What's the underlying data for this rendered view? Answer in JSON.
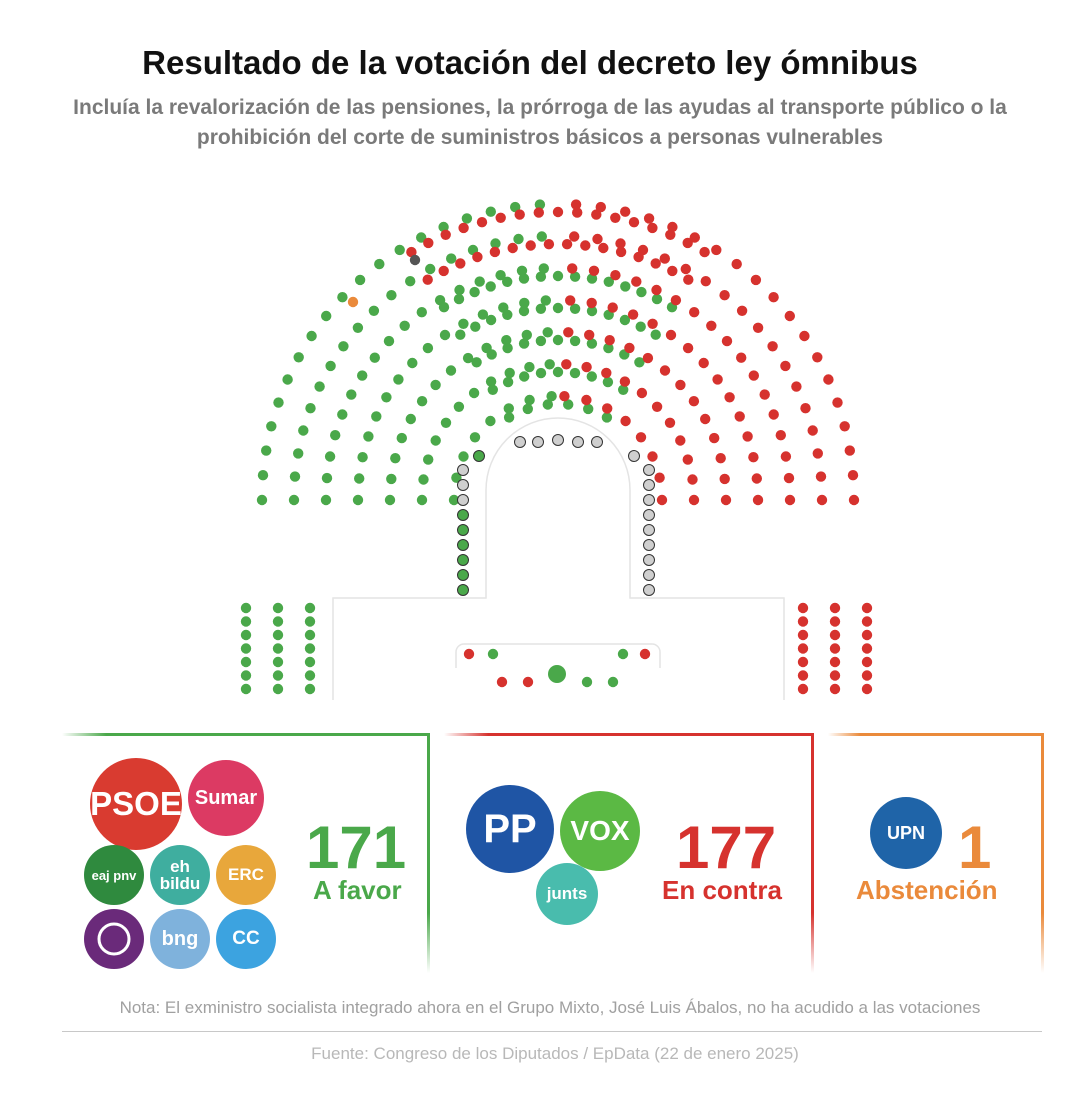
{
  "title": "Resultado de la votación del decreto ley ómnibus",
  "subtitle": "Incluía la revalorización de las pensiones, la prórroga de las ayudas al transporte público o la prohibición del corte de suministros básicos a personas vulnerables",
  "colors": {
    "favor": "#4aa84a",
    "contra": "#d6322e",
    "abstencion": "#ea8a3b",
    "absent": "#555555",
    "gov_empty": "#cfcfcf"
  },
  "vote_counts": {
    "favor": 171,
    "contra": 177,
    "abstencion": 1
  },
  "favor": {
    "count": "171",
    "label": "A favor",
    "logos": [
      {
        "name": "PSOE",
        "text": "PSOE",
        "color": "#d93b30"
      },
      {
        "name": "Sumar",
        "text": "Sumar",
        "color": "#dc3a63"
      },
      {
        "name": "EAJ-PNV",
        "text": "eaj pnv",
        "color": "#2f8a3e"
      },
      {
        "name": "EH Bildu",
        "text": "eh bildu",
        "color": "#3fae9f"
      },
      {
        "name": "ERC",
        "text": "ERC",
        "color": "#e8a73b"
      },
      {
        "name": "Podemos",
        "text": "",
        "color": "#6a2a7a"
      },
      {
        "name": "BNG",
        "text": "bng",
        "color": "#7fb2dc"
      },
      {
        "name": "CC",
        "text": "CC",
        "color": "#3ca3e0"
      }
    ]
  },
  "contra": {
    "count": "177",
    "label": "En contra",
    "logos": [
      {
        "name": "PP",
        "text": "PP",
        "color": "#1f55a5"
      },
      {
        "name": "VOX",
        "text": "VOX",
        "color": "#5bb944"
      },
      {
        "name": "Junts",
        "text": "junts",
        "color": "#49bcad"
      }
    ]
  },
  "abstencion": {
    "count": "1",
    "label": "Abstención",
    "logos": [
      {
        "name": "UPN",
        "text": "UPN",
        "color": "#1f64a8"
      }
    ]
  },
  "note": "Nota: El exministro socialista integrado ahora en el Grupo Mixto, José Luis Ábalos, no ha acudido a las votaciones",
  "source": "Fuente: Congreso de los Diputados / EpData (22 de enero 2025)"
}
